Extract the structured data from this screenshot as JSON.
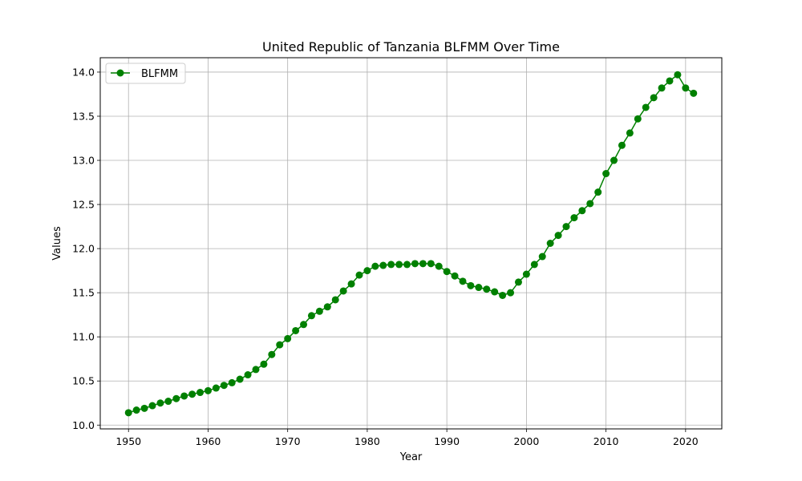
{
  "chart_data": {
    "type": "line",
    "title": "United Republic of Tanzania BLFMM Over Time",
    "xlabel": "Year",
    "ylabel": "Values",
    "xlim": [
      1946.45,
      2024.55
    ],
    "ylim": [
      9.957,
      14.163
    ],
    "xticks": [
      1950,
      1960,
      1970,
      1980,
      1990,
      2000,
      2010,
      2020
    ],
    "yticks": [
      10.0,
      10.5,
      11.0,
      11.5,
      12.0,
      12.5,
      13.0,
      13.5,
      14.0
    ],
    "grid": true,
    "legend_position": "top-left",
    "series": [
      {
        "name": "BLFMM",
        "color": "#008000",
        "marker": "circle",
        "x": [
          1950,
          1951,
          1952,
          1953,
          1954,
          1955,
          1956,
          1957,
          1958,
          1959,
          1960,
          1961,
          1962,
          1963,
          1964,
          1965,
          1966,
          1967,
          1968,
          1969,
          1970,
          1971,
          1972,
          1973,
          1974,
          1975,
          1976,
          1977,
          1978,
          1979,
          1980,
          1981,
          1982,
          1983,
          1984,
          1985,
          1986,
          1987,
          1988,
          1989,
          1990,
          1991,
          1992,
          1993,
          1994,
          1995,
          1996,
          1997,
          1998,
          1999,
          2000,
          2001,
          2002,
          2003,
          2004,
          2005,
          2006,
          2007,
          2008,
          2009,
          2010,
          2011,
          2012,
          2013,
          2014,
          2015,
          2016,
          2017,
          2018,
          2019,
          2020,
          2021
        ],
        "values": [
          10.14,
          10.17,
          10.19,
          10.22,
          10.25,
          10.27,
          10.3,
          10.33,
          10.35,
          10.37,
          10.39,
          10.42,
          10.45,
          10.48,
          10.52,
          10.57,
          10.63,
          10.69,
          10.8,
          10.91,
          10.98,
          11.07,
          11.14,
          11.24,
          11.29,
          11.34,
          11.42,
          11.52,
          11.6,
          11.7,
          11.75,
          11.8,
          11.81,
          11.82,
          11.82,
          11.82,
          11.83,
          11.83,
          11.83,
          11.8,
          11.74,
          11.69,
          11.63,
          11.58,
          11.56,
          11.54,
          11.51,
          11.47,
          11.5,
          11.62,
          11.71,
          11.82,
          11.91,
          12.06,
          12.15,
          12.25,
          12.35,
          12.43,
          12.51,
          12.64,
          12.85,
          13.0,
          13.17,
          13.31,
          13.47,
          13.6,
          13.71,
          13.82,
          13.9,
          13.97,
          13.82,
          13.76
        ]
      }
    ]
  }
}
